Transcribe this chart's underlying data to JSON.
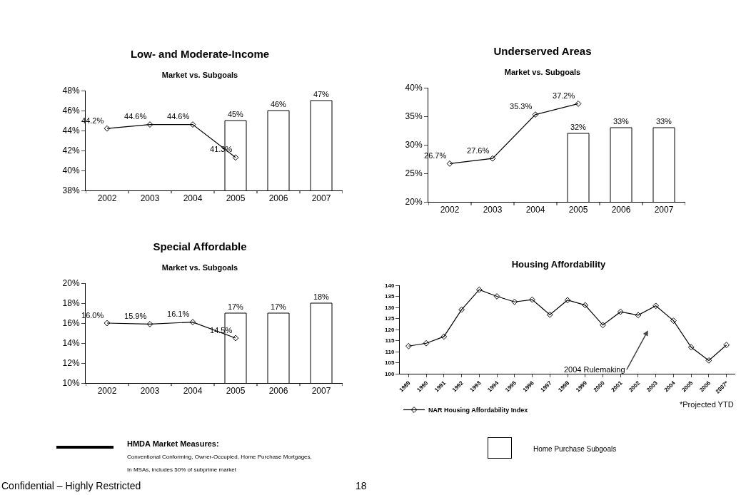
{
  "chart_data": [
    {
      "type": "bar",
      "title": "Low- and Moderate-Income",
      "subtitle": "Market vs. Subgoals",
      "categories": [
        "2002",
        "2003",
        "2004",
        "2005",
        "2006",
        "2007"
      ],
      "ylim": [
        38,
        48
      ],
      "yticks": [
        {
          "value": 38,
          "label": "38%"
        },
        {
          "value": 40,
          "label": "40%"
        },
        {
          "value": 42,
          "label": "42%"
        },
        {
          "value": 44,
          "label": "44%"
        },
        {
          "value": 46,
          "label": "46%"
        },
        {
          "value": 48,
          "label": "48%"
        }
      ],
      "grid": false,
      "legend": false,
      "marker": "diamond",
      "series": [
        {
          "type": "bar",
          "color": "#ffffff",
          "values": [
            null,
            null,
            null,
            45,
            46,
            47
          ],
          "value_labels": [
            null,
            null,
            null,
            "45%",
            "46%",
            "47%"
          ]
        },
        {
          "type": "line",
          "color": "#000000",
          "values": [
            44.2,
            44.6,
            44.6,
            41.3,
            null,
            null
          ],
          "value_labels": [
            "44.2%",
            "44.6%",
            "44.6%",
            "41.3%",
            null,
            null
          ]
        }
      ]
    },
    {
      "type": "bar",
      "title": "Underserved Areas",
      "subtitle": "Market vs. Subgoals",
      "categories": [
        "2002",
        "2003",
        "2004",
        "2005",
        "2006",
        "2007"
      ],
      "ylim": [
        20,
        40
      ],
      "yticks": [
        {
          "value": 20,
          "label": "20%"
        },
        {
          "value": 25,
          "label": "25%"
        },
        {
          "value": 30,
          "label": "30%"
        },
        {
          "value": 35,
          "label": "35%"
        },
        {
          "value": 40,
          "label": "40%"
        }
      ],
      "grid": false,
      "legend": false,
      "marker": "diamond",
      "series": [
        {
          "type": "bar",
          "color": "#ffffff",
          "values": [
            null,
            null,
            null,
            32,
            33,
            33
          ],
          "value_labels": [
            null,
            null,
            null,
            "32%",
            "33%",
            "33%"
          ]
        },
        {
          "type": "line",
          "color": "#000000",
          "values": [
            26.7,
            27.6,
            35.3,
            37.2,
            null,
            null
          ],
          "value_labels": [
            "26.7%",
            "27.6%",
            "35.3%",
            "37.2%",
            null,
            null
          ]
        }
      ]
    },
    {
      "type": "bar",
      "title": "Special Affordable",
      "subtitle": "Market vs. Subgoals",
      "categories": [
        "2002",
        "2003",
        "2004",
        "2005",
        "2006",
        "2007"
      ],
      "ylim": [
        10,
        20
      ],
      "yticks": [
        {
          "value": 10,
          "label": "10%"
        },
        {
          "value": 12,
          "label": "12%"
        },
        {
          "value": 14,
          "label": "14%"
        },
        {
          "value": 16,
          "label": "16%"
        },
        {
          "value": 18,
          "label": "18%"
        },
        {
          "value": 20,
          "label": "20%"
        }
      ],
      "grid": false,
      "legend": false,
      "marker": "diamond",
      "series": [
        {
          "type": "bar",
          "color": "#ffffff",
          "values": [
            null,
            null,
            null,
            17,
            17,
            18
          ],
          "value_labels": [
            null,
            null,
            null,
            "17%",
            "17%",
            "18%"
          ]
        },
        {
          "type": "line",
          "color": "#000000",
          "values": [
            16.0,
            15.9,
            16.1,
            14.5,
            null,
            null
          ],
          "value_labels": [
            "16.0%",
            "15.9%",
            "16.1%",
            "14.5%",
            null,
            null
          ]
        }
      ]
    },
    {
      "type": "line",
      "title": "Housing Affordability",
      "categories": [
        "1989",
        "1990",
        "1991",
        "1992",
        "1993",
        "1994",
        "1995",
        "1996",
        "1997",
        "1998",
        "1999",
        "2000",
        "2001",
        "2002",
        "2003",
        "2004",
        "2005",
        "2006",
        "2007*"
      ],
      "ylim": [
        100,
        140
      ],
      "yticks": [
        100,
        105,
        110,
        115,
        120,
        125,
        130,
        135,
        140
      ],
      "grid": false,
      "legend": "bottom left",
      "marker": "diamond",
      "series": [
        {
          "name": "NAR Housing Affordability Index",
          "color": "#000000",
          "values": [
            112.5,
            113.8,
            116.8,
            129,
            138,
            135,
            132.5,
            133.5,
            126.7,
            133.3,
            131,
            122,
            128,
            126.5,
            130.7,
            124,
            112,
            106,
            113
          ]
        }
      ],
      "annotations": [
        "2004 Rulemaking",
        "*Projected YTD"
      ]
    },
    {
      "type": "other",
      "annotations": [
        "HMDA Market Measures:",
        "Conventional Conforming, Owner-Occupied, Home Purchase Mortgages,",
        "In MSAs, includes 50% of subprime market",
        "Home Purchase Subgoals",
        "Confidential – Highly Restricted",
        "18"
      ]
    }
  ]
}
